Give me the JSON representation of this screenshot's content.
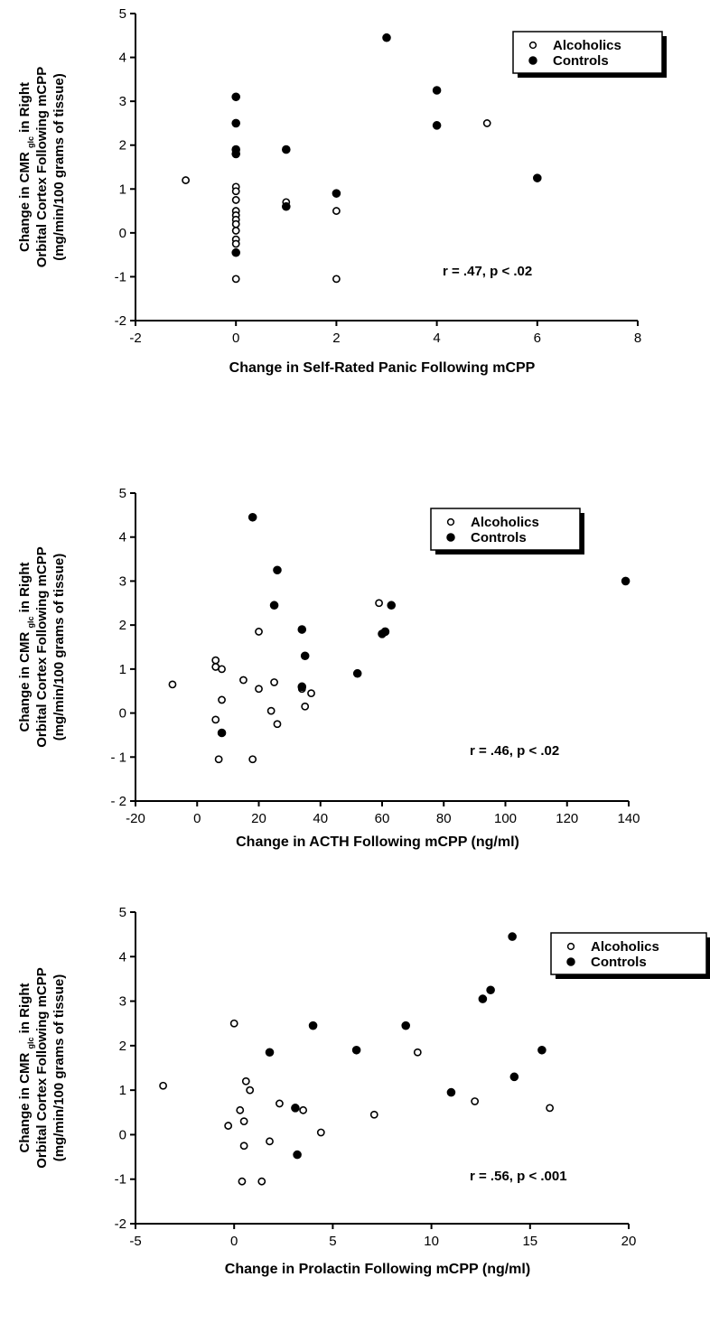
{
  "chart_data": [
    {
      "type": "scatter",
      "xlabel": "Change in Self-Rated Panic Following mCPP",
      "ylabel": {
        "line1_pre": "Change in CMR",
        "line1_sub": "glc",
        "line1_post": "in Right",
        "line2": "Orbital Cortex Following mCPP",
        "line3": "(mg/min/100 grams of tissue)"
      },
      "xlim": [
        -2,
        8
      ],
      "ylim": [
        -2,
        5
      ],
      "xticks": [
        -2,
        0,
        2,
        4,
        6,
        8
      ],
      "yticks": [
        -2,
        -1,
        0,
        1,
        2,
        3,
        4,
        5
      ],
      "xtick_labels": [
        "-2",
        "0",
        "2",
        "4",
        "6",
        "8"
      ],
      "ytick_labels": [
        "-2",
        "-1",
        "0",
        "1",
        "2",
        "3",
        "4",
        "5"
      ],
      "grid": false,
      "legend_position": "top-right",
      "annotation": "r = .47, p < .02",
      "series": [
        {
          "name": "Alcoholics",
          "marker": "open-circle",
          "points": [
            [
              -1,
              1.2
            ],
            [
              0,
              1.05
            ],
            [
              0,
              0.95
            ],
            [
              0,
              0.75
            ],
            [
              0,
              0.5
            ],
            [
              0,
              0.4
            ],
            [
              0,
              0.3
            ],
            [
              0,
              0.2
            ],
            [
              0,
              0.05
            ],
            [
              0,
              -0.15
            ],
            [
              0,
              -0.25
            ],
            [
              0,
              -1.05
            ],
            [
              1,
              0.7
            ],
            [
              2,
              0.5
            ],
            [
              2,
              -1.05
            ],
            [
              5,
              2.5
            ]
          ]
        },
        {
          "name": "Controls",
          "marker": "filled-circle",
          "points": [
            [
              0,
              3.1
            ],
            [
              0,
              2.5
            ],
            [
              0,
              1.9
            ],
            [
              0,
              1.8
            ],
            [
              0,
              -0.45
            ],
            [
              1,
              1.9
            ],
            [
              1,
              0.6
            ],
            [
              2,
              0.9
            ],
            [
              3,
              4.45
            ],
            [
              4,
              3.25
            ],
            [
              4,
              2.45
            ],
            [
              6,
              1.25
            ]
          ]
        }
      ]
    },
    {
      "type": "scatter",
      "xlabel": "Change in ACTH Following mCPP (ng/ml)",
      "ylabel": {
        "line1_pre": "Change in CMR",
        "line1_sub": "glc",
        "line1_post": "in Right",
        "line2": "Orbital Cortex Following mCPP",
        "line3": "(mg/min/100 grams of tissue)"
      },
      "xlim": [
        -20,
        140
      ],
      "ylim": [
        -2,
        5
      ],
      "xticks": [
        -20,
        0,
        20,
        40,
        60,
        80,
        100,
        120,
        140
      ],
      "yticks": [
        -2,
        -1,
        0,
        1,
        2,
        3,
        4,
        5
      ],
      "xtick_labels": [
        "-20",
        "0",
        "20",
        "40",
        "60",
        "80",
        "100",
        "120",
        "140"
      ],
      "ytick_labels": [
        "- 2",
        "- 1",
        "0",
        "1",
        "2",
        "3",
        "4",
        "5"
      ],
      "grid": false,
      "legend_position": "top-right",
      "annotation": "r = .46, p < .02",
      "series": [
        {
          "name": "Alcoholics",
          "marker": "open-circle",
          "points": [
            [
              -8,
              0.65
            ],
            [
              6,
              1.2
            ],
            [
              6,
              1.05
            ],
            [
              6,
              -0.15
            ],
            [
              7,
              -1.05
            ],
            [
              8,
              1.0
            ],
            [
              8,
              0.3
            ],
            [
              15,
              0.75
            ],
            [
              18,
              -1.05
            ],
            [
              20,
              1.85
            ],
            [
              20,
              0.55
            ],
            [
              24,
              0.05
            ],
            [
              25,
              0.7
            ],
            [
              26,
              -0.25
            ],
            [
              34,
              0.55
            ],
            [
              35,
              0.15
            ],
            [
              37,
              0.45
            ],
            [
              59,
              2.5
            ]
          ]
        },
        {
          "name": "Controls",
          "marker": "filled-circle",
          "points": [
            [
              8,
              -0.45
            ],
            [
              18,
              4.45
            ],
            [
              25,
              2.45
            ],
            [
              26,
              3.25
            ],
            [
              34,
              1.9
            ],
            [
              34,
              0.6
            ],
            [
              35,
              1.3
            ],
            [
              52,
              0.9
            ],
            [
              60,
              1.8
            ],
            [
              61,
              1.85
            ],
            [
              63,
              2.45
            ],
            [
              139,
              3.0
            ]
          ]
        }
      ]
    },
    {
      "type": "scatter",
      "xlabel": "Change in Prolactin Following mCPP (ng/ml)",
      "ylabel": {
        "line1_pre": "Change in CMR",
        "line1_sub": "glc",
        "line1_post": "in Right",
        "line2": "Orbital Cortex Following mCPP",
        "line3": "(mg/min/100 grams of tissue)"
      },
      "xlim": [
        -5,
        20
      ],
      "ylim": [
        -2,
        5
      ],
      "xticks": [
        -5,
        0,
        5,
        10,
        15,
        20
      ],
      "yticks": [
        -2,
        -1,
        0,
        1,
        2,
        3,
        4,
        5
      ],
      "xtick_labels": [
        "-5",
        "0",
        "5",
        "10",
        "15",
        "20"
      ],
      "ytick_labels": [
        "-2",
        "-1",
        "0",
        "1",
        "2",
        "3",
        "4",
        "5"
      ],
      "grid": false,
      "legend_position": "top-right",
      "annotation": "r = .56, p < .001",
      "series": [
        {
          "name": "Alcoholics",
          "marker": "open-circle",
          "points": [
            [
              -3.6,
              1.1
            ],
            [
              -0.3,
              0.2
            ],
            [
              0,
              2.5
            ],
            [
              0.3,
              0.55
            ],
            [
              0.4,
              -1.05
            ],
            [
              0.5,
              0.3
            ],
            [
              0.5,
              -0.25
            ],
            [
              0.6,
              1.2
            ],
            [
              0.8,
              1.0
            ],
            [
              1.4,
              -1.05
            ],
            [
              1.8,
              -0.15
            ],
            [
              2.3,
              0.7
            ],
            [
              3.5,
              0.55
            ],
            [
              4.4,
              0.05
            ],
            [
              7.1,
              0.45
            ],
            [
              9.3,
              1.85
            ],
            [
              12.2,
              0.75
            ],
            [
              16.0,
              0.6
            ]
          ]
        },
        {
          "name": "Controls",
          "marker": "filled-circle",
          "points": [
            [
              1.8,
              1.85
            ],
            [
              3.1,
              0.6
            ],
            [
              3.2,
              -0.45
            ],
            [
              4.0,
              2.45
            ],
            [
              6.2,
              1.9
            ],
            [
              8.7,
              2.45
            ],
            [
              11.0,
              0.95
            ],
            [
              12.6,
              3.05
            ],
            [
              13.0,
              3.25
            ],
            [
              14.1,
              4.45
            ],
            [
              14.2,
              1.3
            ],
            [
              15.6,
              1.9
            ]
          ]
        }
      ]
    }
  ]
}
